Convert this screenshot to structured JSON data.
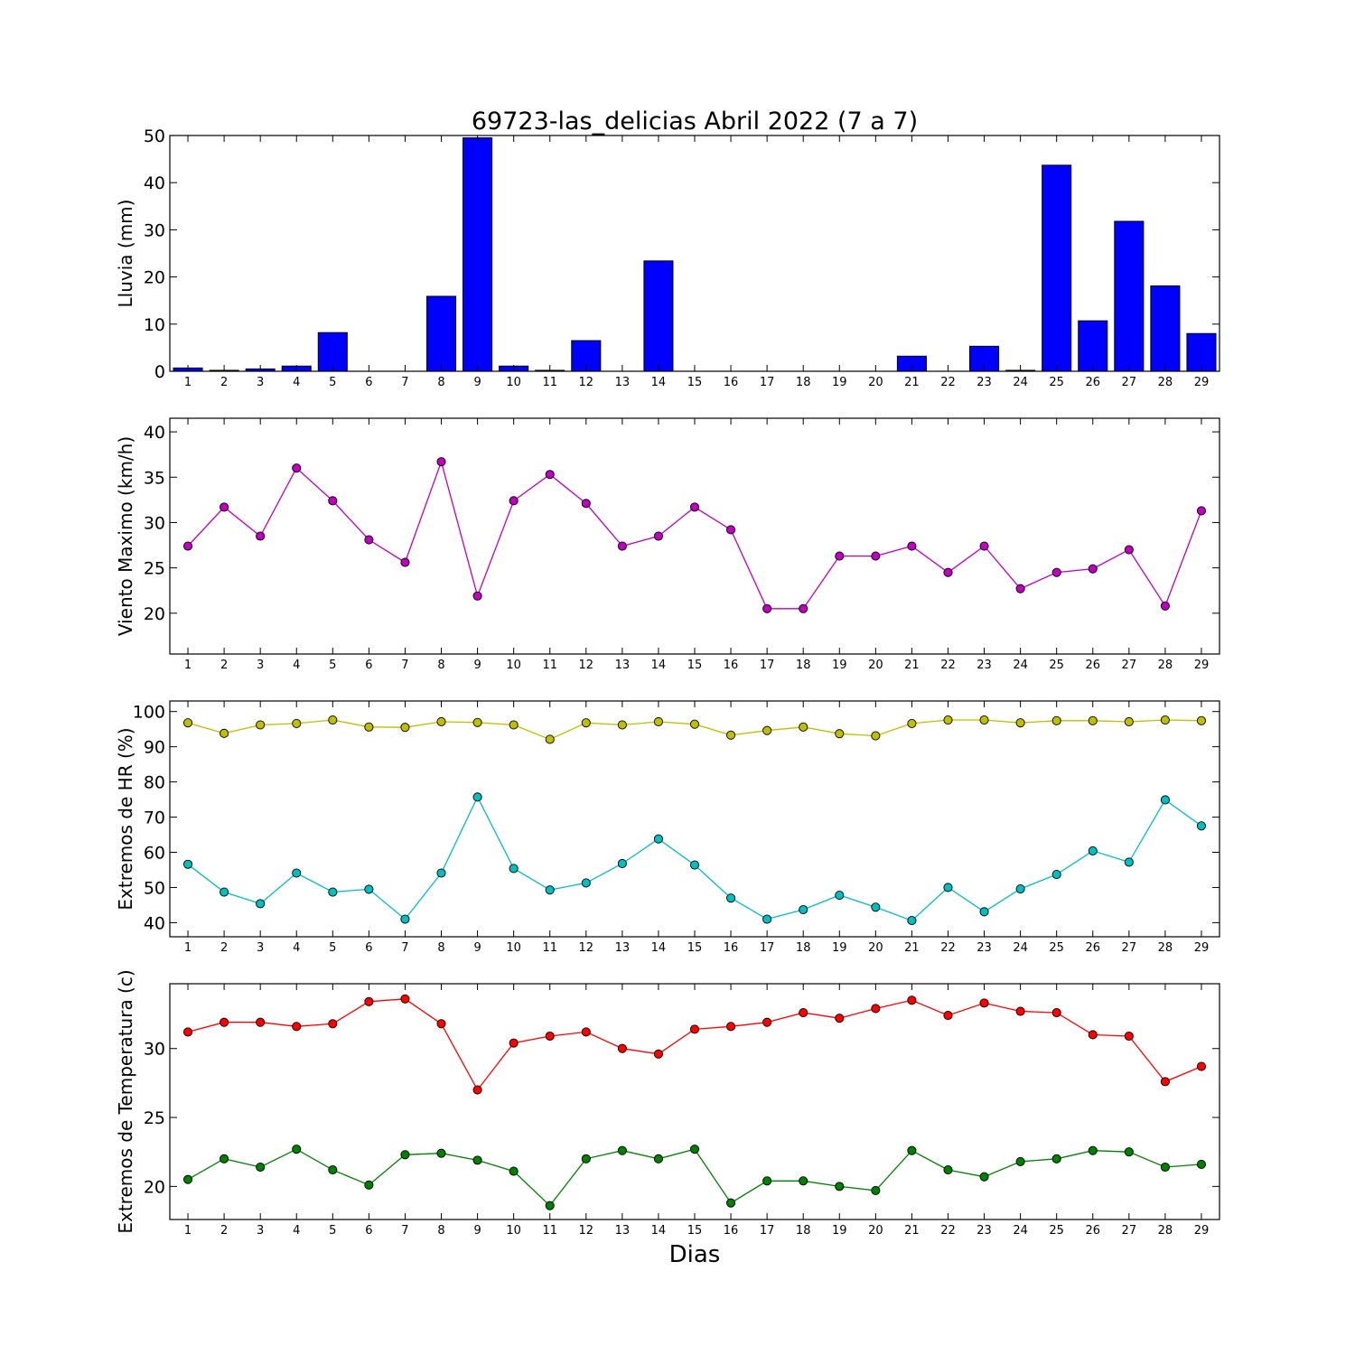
{
  "title": "69723-las_delicias Abril 2022  (7 a 7)",
  "xlabel": "Dias",
  "chart_data": [
    {
      "type": "bar",
      "ylabel": "Lluvia (mm)",
      "color": "#0000ff",
      "ylim": [
        0,
        50
      ],
      "yticks": [
        0,
        10,
        20,
        30,
        40,
        50
      ],
      "xlim": [
        0.5,
        29.5
      ],
      "categories": [
        1,
        2,
        3,
        4,
        5,
        6,
        7,
        8,
        9,
        10,
        11,
        12,
        13,
        14,
        15,
        16,
        17,
        18,
        19,
        20,
        21,
        22,
        23,
        24,
        25,
        26,
        27,
        28,
        29
      ],
      "values": [
        0.7,
        0.2,
        0.5,
        1.1,
        8.2,
        0,
        0,
        15.9,
        49.5,
        1.1,
        0.2,
        6.5,
        0,
        23.4,
        0,
        0,
        0,
        0,
        0,
        0,
        3.2,
        0,
        5.3,
        0.2,
        43.7,
        10.7,
        31.8,
        18.1,
        8.0
      ]
    },
    {
      "type": "line",
      "ylabel": "Viento Maximo (km/h)",
      "ylim": [
        15.5,
        41.5
      ],
      "yticks": [
        20,
        25,
        30,
        35,
        40
      ],
      "xlim": [
        0.5,
        29.5
      ],
      "x": [
        1,
        2,
        3,
        4,
        5,
        6,
        7,
        8,
        9,
        10,
        11,
        12,
        13,
        14,
        15,
        16,
        17,
        18,
        19,
        20,
        21,
        22,
        23,
        24,
        25,
        26,
        27,
        28,
        29
      ],
      "series": [
        {
          "color": "#bf00bf",
          "values": [
            27.4,
            31.7,
            28.5,
            36.0,
            32.4,
            28.1,
            25.6,
            36.7,
            21.9,
            32.4,
            35.3,
            32.1,
            27.4,
            28.5,
            31.7,
            29.2,
            20.5,
            20.5,
            26.3,
            26.3,
            27.4,
            24.5,
            27.4,
            22.7,
            24.5,
            24.9,
            27.0,
            20.8,
            31.3
          ]
        }
      ]
    },
    {
      "type": "line",
      "ylabel": "Extremos de HR (%)",
      "ylim": [
        36,
        103
      ],
      "yticks": [
        40,
        50,
        60,
        70,
        80,
        90,
        100
      ],
      "xlim": [
        0.5,
        29.5
      ],
      "x": [
        1,
        2,
        3,
        4,
        5,
        6,
        7,
        8,
        9,
        10,
        11,
        12,
        13,
        14,
        15,
        16,
        17,
        18,
        19,
        20,
        21,
        22,
        23,
        24,
        25,
        26,
        27,
        28,
        29
      ],
      "series": [
        {
          "color": "#bfbf00",
          "values": [
            96.8,
            93.8,
            96.2,
            96.6,
            97.6,
            95.6,
            95.5,
            97.1,
            96.9,
            96.2,
            92.1,
            96.8,
            96.2,
            97.1,
            96.4,
            93.3,
            94.6,
            95.6,
            93.7,
            93.1,
            96.6,
            97.6,
            97.6,
            96.8,
            97.4,
            97.4,
            97.1,
            97.6,
            97.4
          ]
        },
        {
          "color": "#00bfbf",
          "values": [
            56.6,
            48.7,
            45.4,
            54.1,
            48.7,
            49.5,
            41.0,
            54.1,
            75.7,
            55.4,
            49.3,
            51.3,
            56.8,
            63.8,
            56.4,
            47.0,
            41.0,
            43.7,
            47.8,
            44.4,
            40.6,
            50.0,
            43.1,
            49.6,
            53.7,
            60.4,
            57.2,
            74.9,
            67.5
          ]
        }
      ]
    },
    {
      "type": "line",
      "ylabel": "Extremos de Temperatura (c)",
      "ylim": [
        17.6,
        34.7
      ],
      "yticks": [
        20,
        25,
        30
      ],
      "xlim": [
        0.5,
        29.5
      ],
      "x": [
        1,
        2,
        3,
        4,
        5,
        6,
        7,
        8,
        9,
        10,
        11,
        12,
        13,
        14,
        15,
        16,
        17,
        18,
        19,
        20,
        21,
        22,
        23,
        24,
        25,
        26,
        27,
        28,
        29
      ],
      "series": [
        {
          "color": "#ff0000",
          "values": [
            31.2,
            31.9,
            31.9,
            31.6,
            31.8,
            33.4,
            33.6,
            31.8,
            27.0,
            30.4,
            30.9,
            31.2,
            30.0,
            29.6,
            31.4,
            31.6,
            31.9,
            32.6,
            32.2,
            32.9,
            33.5,
            32.4,
            33.3,
            32.7,
            32.6,
            31.0,
            30.9,
            27.6,
            28.7
          ]
        },
        {
          "color": "#008000",
          "values": [
            20.5,
            22.0,
            21.4,
            22.7,
            21.2,
            20.1,
            22.3,
            22.4,
            21.9,
            21.1,
            18.6,
            22.0,
            22.6,
            22.0,
            22.7,
            18.8,
            20.4,
            20.4,
            20.0,
            19.7,
            22.6,
            21.2,
            20.7,
            21.8,
            22.0,
            22.6,
            22.5,
            21.4,
            21.6
          ]
        }
      ]
    }
  ]
}
